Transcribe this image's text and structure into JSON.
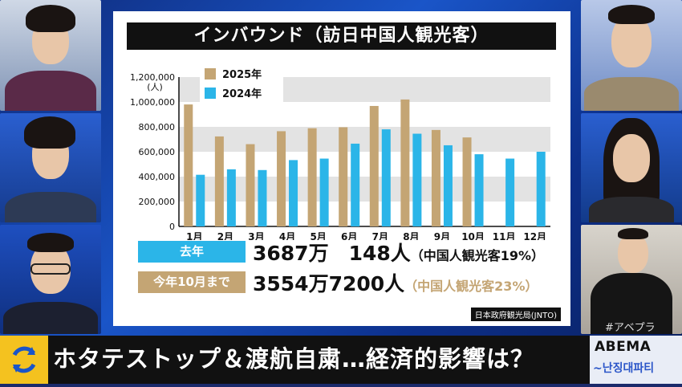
{
  "board": {
    "title": "インバウンド（訪日中国人観光客）",
    "source": "日本政府観光局(JNTO)"
  },
  "chart_data": {
    "type": "bar",
    "categories": [
      "1月",
      "2月",
      "3月",
      "4月",
      "5月",
      "6月",
      "7月",
      "8月",
      "9月",
      "10月",
      "11月",
      "12月"
    ],
    "series": [
      {
        "name": "2025年",
        "color": "#c4a574",
        "values": [
          980000,
          723000,
          661000,
          765000,
          789000,
          797000,
          968000,
          1020000,
          775000,
          715000,
          null,
          null
        ]
      },
      {
        "name": "2024年",
        "color": "#2bb5e8",
        "values": [
          415000,
          459000,
          453000,
          533000,
          545000,
          665000,
          780000,
          745000,
          652000,
          580000,
          545000,
          600000
        ]
      }
    ],
    "ylim": [
      0,
      1200000
    ],
    "yticks": [
      "0",
      "200,000",
      "400,000",
      "600,000",
      "800,000",
      "1,000,000",
      "1,200,000"
    ],
    "yunit": "(人)",
    "legend_position": "top-left"
  },
  "summary": {
    "last_year_label": "去年",
    "last_year_value": "3687万　148人",
    "last_year_note": "（中国人観光客19%）",
    "this_year_label": "今年10月まで",
    "this_year_value": "3554万7200人",
    "this_year_note": "（中国人観光客23%）"
  },
  "ticker": {
    "headline": "ホタテストップ＆渡航自粛…経済的影響は？"
  },
  "logo": {
    "name": "ABEMA",
    "sub": "~난징대파티",
    "hashtag": "#アベプラ"
  },
  "colors": {
    "accent_blue": "#2bb5e8",
    "accent_gold": "#c4a574",
    "ticker_bg": "#111111",
    "ticker_icon": "#f4c21f"
  }
}
